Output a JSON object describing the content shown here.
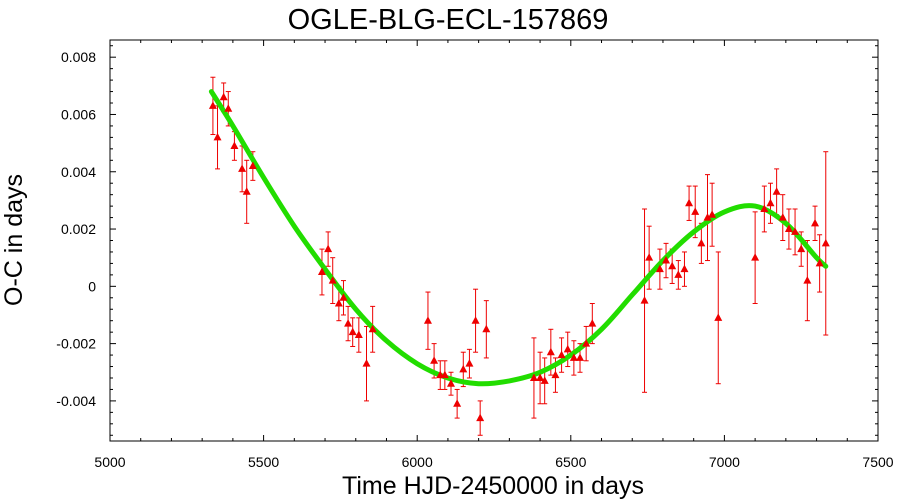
{
  "chart_data": {
    "type": "scatter",
    "title": "OGLE-BLG-ECL-157869",
    "xlabel": "Time HJD-2450000 in days",
    "ylabel": "O-C in days",
    "xlim": [
      5000,
      7500
    ],
    "ylim": [
      -0.0054,
      0.0086
    ],
    "x_ticks": [
      5000,
      5500,
      6000,
      6500,
      7000,
      7500
    ],
    "x_tick_labels": [
      "5000",
      "5500",
      "6000",
      "6500",
      "7000",
      "7500"
    ],
    "y_ticks": [
      0.008,
      0.006,
      0.004,
      0.002,
      0,
      -0.002,
      -0.004
    ],
    "y_tick_labels": [
      "0.008",
      "0.006",
      "0.004",
      "0.002",
      "0",
      "-0.002",
      "-0.004"
    ],
    "grid": false,
    "legend": "none",
    "colors": {
      "points": "#ee0000",
      "fit": "#22dd00"
    },
    "series": [
      {
        "kind": "points_with_errorbars",
        "points": [
          {
            "x": 5335,
            "y": 0.0063,
            "err": 0.001
          },
          {
            "x": 5350,
            "y": 0.0052,
            "err": 0.0011
          },
          {
            "x": 5370,
            "y": 0.0066,
            "err": 0.0005
          },
          {
            "x": 5385,
            "y": 0.0062,
            "err": 0.0006
          },
          {
            "x": 5405,
            "y": 0.0049,
            "err": 0.0005
          },
          {
            "x": 5430,
            "y": 0.0041,
            "err": 0.0008
          },
          {
            "x": 5445,
            "y": 0.0033,
            "err": 0.0011
          },
          {
            "x": 5465,
            "y": 0.0042,
            "err": 0.0005
          },
          {
            "x": 5690,
            "y": 0.0005,
            "err": 0.0008
          },
          {
            "x": 5710,
            "y": 0.0013,
            "err": 0.0006
          },
          {
            "x": 5725,
            "y": 0.0002,
            "err": 0.0008
          },
          {
            "x": 5745,
            "y": -0.0006,
            "err": 0.0006
          },
          {
            "x": 5760,
            "y": -0.0004,
            "err": 0.0006
          },
          {
            "x": 5775,
            "y": -0.0013,
            "err": 0.0006
          },
          {
            "x": 5790,
            "y": -0.0016,
            "err": 0.0005
          },
          {
            "x": 5810,
            "y": -0.0017,
            "err": 0.0006
          },
          {
            "x": 5835,
            "y": -0.0027,
            "err": 0.0013
          },
          {
            "x": 5855,
            "y": -0.0015,
            "err": 0.0008
          },
          {
            "x": 6035,
            "y": -0.0012,
            "err": 0.001
          },
          {
            "x": 6055,
            "y": -0.0026,
            "err": 0.0006
          },
          {
            "x": 6075,
            "y": -0.0031,
            "err": 0.0005
          },
          {
            "x": 6090,
            "y": -0.0031,
            "err": 0.0005
          },
          {
            "x": 6110,
            "y": -0.0034,
            "err": 0.0004
          },
          {
            "x": 6130,
            "y": -0.0041,
            "err": 0.0005
          },
          {
            "x": 6150,
            "y": -0.0029,
            "err": 0.0006
          },
          {
            "x": 6170,
            "y": -0.0027,
            "err": 0.0005
          },
          {
            "x": 6190,
            "y": -0.0012,
            "err": 0.0011
          },
          {
            "x": 6205,
            "y": -0.0046,
            "err": 0.0006
          },
          {
            "x": 6225,
            "y": -0.0015,
            "err": 0.001
          },
          {
            "x": 6380,
            "y": -0.0032,
            "err": 0.0014
          },
          {
            "x": 6400,
            "y": -0.0032,
            "err": 0.0009
          },
          {
            "x": 6415,
            "y": -0.0033,
            "err": 0.0008
          },
          {
            "x": 6435,
            "y": -0.0023,
            "err": 0.0008
          },
          {
            "x": 6450,
            "y": -0.0031,
            "err": 0.0006
          },
          {
            "x": 6470,
            "y": -0.0024,
            "err": 0.0006
          },
          {
            "x": 6490,
            "y": -0.0022,
            "err": 0.0006
          },
          {
            "x": 6510,
            "y": -0.0025,
            "err": 0.0006
          },
          {
            "x": 6530,
            "y": -0.0025,
            "err": 0.0005
          },
          {
            "x": 6550,
            "y": -0.002,
            "err": 0.0006
          },
          {
            "x": 6570,
            "y": -0.0013,
            "err": 0.0007
          },
          {
            "x": 6740,
            "y": -0.0005,
            "err": 0.0032
          },
          {
            "x": 6755,
            "y": 0.001,
            "err": 0.0011
          },
          {
            "x": 6790,
            "y": 0.0006,
            "err": 0.0007
          },
          {
            "x": 6810,
            "y": 0.0009,
            "err": 0.0006
          },
          {
            "x": 6830,
            "y": 0.0007,
            "err": 0.0006
          },
          {
            "x": 6850,
            "y": 0.0004,
            "err": 0.0005
          },
          {
            "x": 6870,
            "y": 0.0006,
            "err": 0.0006
          },
          {
            "x": 6885,
            "y": 0.0029,
            "err": 0.0006
          },
          {
            "x": 6905,
            "y": 0.0026,
            "err": 0.0009
          },
          {
            "x": 6925,
            "y": 0.0015,
            "err": 0.0007
          },
          {
            "x": 6945,
            "y": 0.0024,
            "err": 0.0015
          },
          {
            "x": 6960,
            "y": 0.0025,
            "err": 0.0011
          },
          {
            "x": 6980,
            "y": -0.0011,
            "err": 0.0023
          },
          {
            "x": 7100,
            "y": 0.001,
            "err": 0.0016
          },
          {
            "x": 7130,
            "y": 0.0027,
            "err": 0.0008
          },
          {
            "x": 7150,
            "y": 0.0029,
            "err": 0.0007
          },
          {
            "x": 7170,
            "y": 0.0033,
            "err": 0.0008
          },
          {
            "x": 7190,
            "y": 0.0024,
            "err": 0.0008
          },
          {
            "x": 7210,
            "y": 0.002,
            "err": 0.0007
          },
          {
            "x": 7230,
            "y": 0.0019,
            "err": 0.0008
          },
          {
            "x": 7250,
            "y": 0.0013,
            "err": 0.0006
          },
          {
            "x": 7270,
            "y": 0.0002,
            "err": 0.0014
          },
          {
            "x": 7295,
            "y": 0.0022,
            "err": 0.0006
          },
          {
            "x": 7310,
            "y": 0.0008,
            "err": 0.001
          },
          {
            "x": 7330,
            "y": 0.0015,
            "err": 0.0032
          }
        ]
      },
      {
        "kind": "fit_curve",
        "x": [
          5330,
          5400,
          5500,
          5600,
          5700,
          5800,
          5900,
          6000,
          6100,
          6200,
          6300,
          6400,
          6500,
          6600,
          6700,
          6800,
          6900,
          7000,
          7100,
          7200,
          7300,
          7330
        ],
        "y": [
          0.0068,
          0.0056,
          0.0038,
          0.0021,
          0.0006,
          -0.0008,
          -0.0019,
          -0.0027,
          -0.0032,
          -0.0034,
          -0.0033,
          -0.003,
          -0.0024,
          -0.0015,
          -0.0003,
          0.0009,
          0.0019,
          0.0026,
          0.0028,
          0.0022,
          0.001,
          0.0007
        ]
      }
    ]
  }
}
